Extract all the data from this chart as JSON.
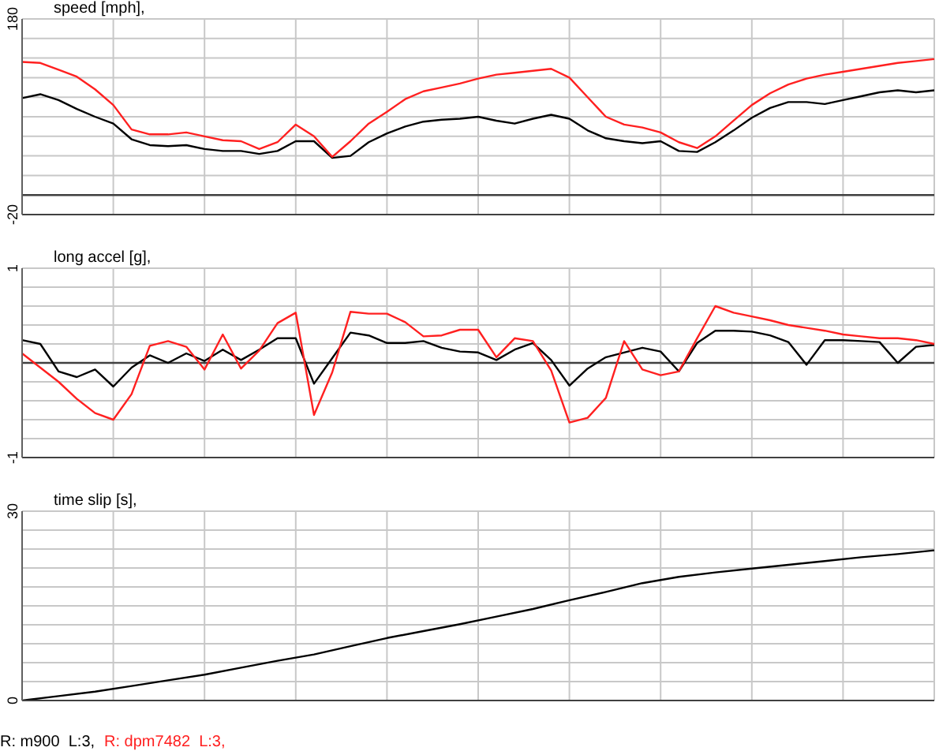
{
  "chart_data": [
    {
      "type": "line",
      "title": "speed [mph],",
      "categories": [
        null,
        null,
        null,
        null,
        null,
        null,
        null,
        null,
        null,
        null,
        null,
        null,
        null,
        null,
        null,
        null,
        null,
        null,
        null,
        null,
        null,
        null,
        null,
        null,
        null,
        null,
        null,
        null,
        null,
        null,
        null,
        null,
        null,
        null,
        null,
        null,
        null,
        null,
        null,
        null,
        null,
        null,
        null,
        null,
        null,
        null,
        null,
        null,
        null,
        null,
        null
      ],
      "ylim": [
        -20,
        180
      ],
      "yticks": [
        -20,
        {
          "value": 0,
          "label": null
        },
        {
          "value": 20,
          "label": null
        },
        {
          "value": 40,
          "label": null
        },
        {
          "value": 60,
          "label": null
        },
        {
          "value": 80,
          "label": null
        },
        {
          "value": 100,
          "label": null
        },
        {
          "value": 120,
          "label": null
        },
        {
          "value": 140,
          "label": null
        },
        {
          "value": 160,
          "label": null
        },
        180
      ],
      "grid": true,
      "ref_lines": [
        {
          "axis": "y",
          "value": 0,
          "color": "#404040"
        }
      ],
      "series": [
        {
          "color": "#000000",
          "values": [
            99,
            103,
            97,
            88,
            80,
            73,
            57,
            51,
            50,
            51,
            47,
            45,
            45,
            42,
            45,
            55,
            55,
            38,
            40,
            54,
            63,
            70,
            75,
            77,
            78,
            80,
            76,
            73,
            78,
            82,
            78,
            66,
            58,
            55,
            53,
            55,
            45,
            44,
            54,
            66,
            79,
            89,
            95,
            95,
            93,
            97,
            101,
            105,
            107,
            105,
            107
          ]
        },
        {
          "color": "#ff2020",
          "values": [
            136,
            135,
            128,
            121,
            108,
            92,
            67,
            62,
            62,
            64,
            60,
            56,
            55,
            47,
            54,
            72,
            60,
            39,
            55,
            73,
            85,
            98,
            106,
            110,
            114,
            119,
            123,
            125,
            127,
            129,
            120,
            100,
            80,
            72,
            69,
            64,
            54,
            48,
            60,
            76,
            92,
            104,
            113,
            119,
            123,
            126,
            129,
            132,
            135,
            137,
            139
          ]
        }
      ]
    },
    {
      "type": "line",
      "title": "long accel [g],",
      "categories": [
        null,
        null,
        null,
        null,
        null,
        null,
        null,
        null,
        null,
        null,
        null,
        null,
        null,
        null,
        null,
        null,
        null,
        null,
        null,
        null,
        null,
        null,
        null,
        null,
        null,
        null,
        null,
        null,
        null,
        null,
        null,
        null,
        null,
        null,
        null,
        null,
        null,
        null,
        null,
        null,
        null,
        null,
        null,
        null,
        null,
        null,
        null,
        null,
        null,
        null,
        null
      ],
      "ylim": [
        -1,
        1
      ],
      "yticks": [
        -1,
        {
          "value": -0.8,
          "label": null
        },
        {
          "value": -0.6,
          "label": null
        },
        {
          "value": -0.4,
          "label": null
        },
        {
          "value": -0.2,
          "label": null
        },
        {
          "value": 0,
          "label": null
        },
        {
          "value": 0.2,
          "label": null
        },
        {
          "value": 0.4,
          "label": null
        },
        {
          "value": 0.6,
          "label": null
        },
        {
          "value": 0.8,
          "label": null
        },
        1
      ],
      "grid": true,
      "ref_lines": [
        {
          "axis": "y",
          "value": 0,
          "color": "#404040"
        }
      ],
      "series": [
        {
          "color": "#000000",
          "values": [
            0.24,
            0.2,
            -0.09,
            -0.15,
            -0.07,
            -0.25,
            -0.05,
            0.08,
            0,
            0.1,
            0.02,
            0.14,
            0.03,
            0.14,
            0.26,
            0.26,
            -0.22,
            0.05,
            0.32,
            0.29,
            0.21,
            0.21,
            0.23,
            0.16,
            0.12,
            0.11,
            0.03,
            0.14,
            0.21,
            0.03,
            -0.24,
            -0.06,
            0.06,
            0.11,
            0.16,
            0.12,
            -0.09,
            0.21,
            0.34,
            0.34,
            0.33,
            0.29,
            0.22,
            -0.02,
            0.24,
            0.24,
            0.23,
            0.22,
            0,
            0.17,
            0.19
          ]
        },
        {
          "color": "#ff2020",
          "values": [
            0.1,
            -0.05,
            -0.2,
            -0.38,
            -0.53,
            -0.6,
            -0.33,
            0.18,
            0.23,
            0.17,
            -0.07,
            0.3,
            -0.06,
            0.13,
            0.42,
            0.53,
            -0.55,
            -0.1,
            0.54,
            0.52,
            0.52,
            0.43,
            0.28,
            0.29,
            0.35,
            0.35,
            0.06,
            0.26,
            0.23,
            -0.08,
            -0.63,
            -0.58,
            -0.37,
            0.23,
            -0.07,
            -0.13,
            -0.09,
            0.26,
            0.6,
            0.53,
            0.49,
            0.45,
            0.4,
            0.37,
            0.34,
            0.3,
            0.28,
            0.26,
            0.26,
            0.24,
            0.2
          ]
        }
      ]
    },
    {
      "type": "line",
      "title": "time slip [s],",
      "categories": [
        null,
        null,
        null,
        null,
        null,
        null,
        null,
        null,
        null,
        null,
        null,
        null,
        null,
        null,
        null,
        null,
        null,
        null,
        null,
        null,
        null,
        null,
        null,
        null,
        null,
        null
      ],
      "ylim": [
        0,
        30
      ],
      "yticks": [
        0,
        {
          "value": 3,
          "label": null
        },
        {
          "value": 6,
          "label": null
        },
        {
          "value": 9,
          "label": null
        },
        {
          "value": 12,
          "label": null
        },
        {
          "value": 15,
          "label": null
        },
        {
          "value": 18,
          "label": null
        },
        {
          "value": 21,
          "label": null
        },
        {
          "value": 24,
          "label": null
        },
        {
          "value": 27,
          "label": null
        },
        30
      ],
      "grid": true,
      "legend": "bottom left",
      "series": [
        {
          "name": "R: m900  L:3,",
          "color": "#000000",
          "values": [
            0,
            0.7,
            1.4,
            2.3,
            3.2,
            4.1,
            5.2,
            6.3,
            7.3,
            8.6,
            9.9,
            11,
            12.1,
            13.3,
            14.5,
            15.9,
            17.2,
            18.6,
            19.6,
            20.3,
            20.9,
            21.5,
            22.1,
            22.7,
            23.2,
            23.8
          ]
        },
        {
          "name": "R: dpm7482  L:3,",
          "color": "#ff2020",
          "values": [
            null,
            null,
            null,
            null,
            null,
            null,
            null,
            null,
            null,
            null,
            null,
            null,
            null,
            null,
            null,
            null,
            null,
            null,
            null,
            null,
            null,
            null,
            null,
            null,
            null,
            null
          ]
        }
      ]
    }
  ]
}
